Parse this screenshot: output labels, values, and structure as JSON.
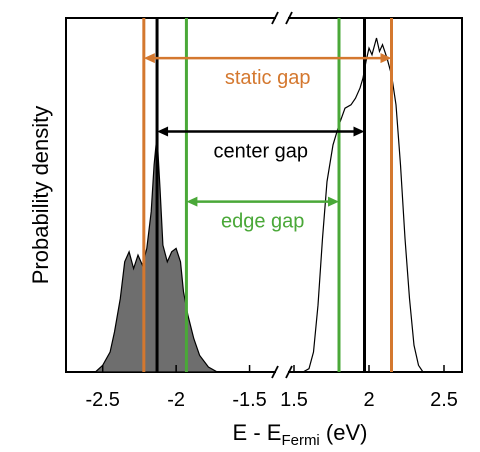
{
  "chart_data": {
    "type": "area",
    "title": "",
    "xlabel": {
      "prefix": "E - E",
      "subscript": "Fermi",
      "suffix": " (eV)"
    },
    "ylabel": "Probability density",
    "axis_break": true,
    "x_segments": [
      {
        "xlim": [
          -2.75,
          -1.32
        ],
        "ticks": [
          -2.5,
          -2,
          -1.5
        ],
        "tick_labels": [
          "-2.5",
          "-2",
          "-1.5"
        ]
      },
      {
        "xlim": [
          1.46,
          2.62
        ],
        "ticks": [
          1.5,
          2,
          2.5
        ],
        "tick_labels": [
          "1.5",
          "2",
          "2.5"
        ]
      }
    ],
    "ylim": [
      0,
      1.06
    ],
    "grid": false,
    "series": [
      {
        "segment": 0,
        "filled": true,
        "color": "#6e6e6e",
        "points": [
          [
            -2.55,
            0
          ],
          [
            -2.5,
            0.02
          ],
          [
            -2.45,
            0.06
          ],
          [
            -2.42,
            0.12
          ],
          [
            -2.38,
            0.22
          ],
          [
            -2.35,
            0.33
          ],
          [
            -2.32,
            0.36
          ],
          [
            -2.29,
            0.31
          ],
          [
            -2.26,
            0.35
          ],
          [
            -2.23,
            0.32
          ],
          [
            -2.2,
            0.37
          ],
          [
            -2.17,
            0.48
          ],
          [
            -2.15,
            0.62
          ],
          [
            -2.13,
            0.71
          ],
          [
            -2.11,
            0.55
          ],
          [
            -2.09,
            0.38
          ],
          [
            -2.06,
            0.33
          ],
          [
            -2.03,
            0.36
          ],
          [
            -2.0,
            0.37
          ],
          [
            -1.97,
            0.33
          ],
          [
            -1.95,
            0.24
          ],
          [
            -1.92,
            0.17
          ],
          [
            -1.88,
            0.1
          ],
          [
            -1.84,
            0.05
          ],
          [
            -1.78,
            0.015
          ],
          [
            -1.72,
            0.0
          ]
        ]
      },
      {
        "segment": 1,
        "filled": false,
        "color": "#000000",
        "points": [
          [
            1.56,
            0
          ],
          [
            1.6,
            0.01
          ],
          [
            1.63,
            0.06
          ],
          [
            1.66,
            0.2
          ],
          [
            1.69,
            0.4
          ],
          [
            1.72,
            0.57
          ],
          [
            1.76,
            0.68
          ],
          [
            1.8,
            0.74
          ],
          [
            1.84,
            0.79
          ],
          [
            1.88,
            0.8
          ],
          [
            1.91,
            0.82
          ],
          [
            1.94,
            0.85
          ],
          [
            1.96,
            0.88
          ],
          [
            1.98,
            0.93
          ],
          [
            2.0,
            0.97
          ],
          [
            2.02,
            0.95
          ],
          [
            2.05,
            1.0
          ],
          [
            2.07,
            0.96
          ],
          [
            2.09,
            0.98
          ],
          [
            2.12,
            0.94
          ],
          [
            2.15,
            0.89
          ],
          [
            2.18,
            0.8
          ],
          [
            2.21,
            0.62
          ],
          [
            2.24,
            0.4
          ],
          [
            2.27,
            0.22
          ],
          [
            2.3,
            0.08
          ],
          [
            2.33,
            0.02
          ],
          [
            2.36,
            0
          ]
        ]
      }
    ],
    "vlines": [
      {
        "segment": 0,
        "x": -2.22,
        "color": "#d4782f"
      },
      {
        "segment": 0,
        "x": -2.13,
        "color": "#000000"
      },
      {
        "segment": 0,
        "x": -1.93,
        "color": "#4aa838"
      },
      {
        "segment": 1,
        "x": 1.8,
        "color": "#4aa838"
      },
      {
        "segment": 1,
        "x": 1.97,
        "color": "#000000"
      },
      {
        "segment": 1,
        "x": 2.15,
        "color": "#d4782f"
      }
    ],
    "gap_annotations": [
      {
        "label": "static gap",
        "color": "#d4782f",
        "y": 0.94,
        "from": [
          0,
          -2.22
        ],
        "to": [
          1,
          2.15
        ]
      },
      {
        "label": "center gap",
        "color": "#000000",
        "y": 0.72,
        "from": [
          0,
          -2.13
        ],
        "to": [
          1,
          1.97
        ]
      },
      {
        "label": "edge gap",
        "color": "#4aa838",
        "y": 0.51,
        "from": [
          0,
          -1.93
        ],
        "to": [
          1,
          1.8
        ]
      }
    ]
  }
}
